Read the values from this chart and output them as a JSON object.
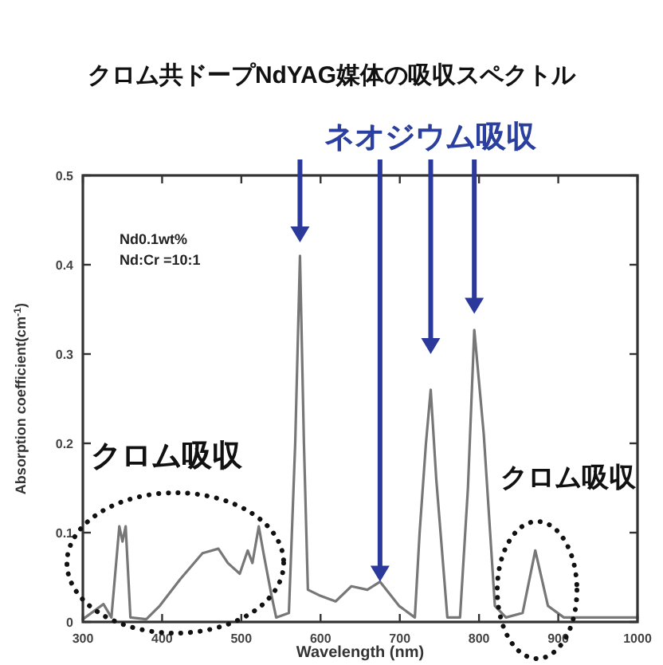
{
  "chart_data": {
    "type": "line",
    "title": "クロム共ドープNdYAG媒体の吸収スペクトル",
    "xlabel": "Wavelength (nm)",
    "ylabel": "Absorption coefficient(cm$^{-1}$)",
    "annotations": [
      "Nd0.1wt%",
      "Nd:Cr =10:1",
      "ネオジウム吸収",
      "クロム吸収",
      "クロム吸収"
    ],
    "xlim": [
      300,
      1000
    ],
    "xticks": [
      300,
      400,
      500,
      600,
      700,
      800,
      900,
      1000
    ],
    "ylim": [
      0,
      0.5
    ],
    "yticks": [
      0,
      0.1,
      0.2,
      0.3,
      0.4,
      0.5
    ],
    "grid": false,
    "marker": "none",
    "line_style": "solid",
    "series": [
      {
        "color": "#777777",
        "x": [
          300,
          326,
          336,
          346,
          350,
          354,
          360,
          380,
          397,
          423,
          451,
          471,
          483,
          498,
          508,
          514,
          522,
          528,
          538,
          544,
          560,
          568,
          574,
          579,
          584,
          598,
          619,
          639,
          659,
          675,
          699,
          719,
          725,
          733,
          739,
          746,
          760,
          776,
          786,
          794,
          806,
          820,
          834,
          855,
          871,
          887,
          907,
          1000
        ],
        "values": [
          0.003,
          0.02,
          0.005,
          0.107,
          0.09,
          0.107,
          0.005,
          0.003,
          0.018,
          0.048,
          0.077,
          0.082,
          0.066,
          0.054,
          0.08,
          0.066,
          0.107,
          0.077,
          0.03,
          0.005,
          0.01,
          0.2,
          0.41,
          0.2,
          0.036,
          0.03,
          0.023,
          0.04,
          0.036,
          0.045,
          0.018,
          0.005,
          0.1,
          0.2,
          0.26,
          0.16,
          0.005,
          0.005,
          0.15,
          0.327,
          0.21,
          0.018,
          0.005,
          0.01,
          0.08,
          0.018,
          0.005,
          0.005
        ]
      }
    ]
  }
}
